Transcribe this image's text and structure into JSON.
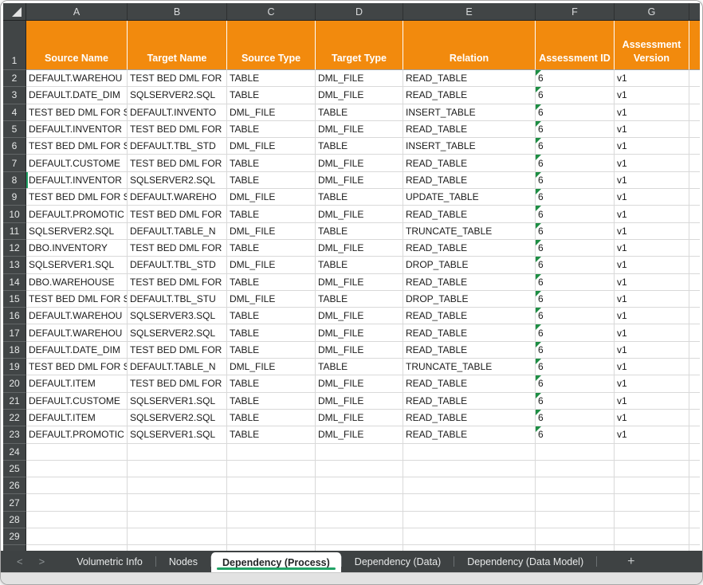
{
  "columns": {
    "letters": [
      "A",
      "B",
      "C",
      "D",
      "E",
      "F",
      "G"
    ],
    "keys": [
      "source_name",
      "target_name",
      "source_type",
      "target_type",
      "relation",
      "assessment_id",
      "assessment_version"
    ]
  },
  "header_row": {
    "row_number": "1",
    "labels": {
      "source_name": "Source Name",
      "target_name": "Target Name",
      "source_type": "Source Type",
      "target_type": "Target Type",
      "relation": "Relation",
      "assessment_id": "Assessment ID",
      "assessment_version": "Assessment Version"
    }
  },
  "rows": [
    {
      "n": "2",
      "source_name": "DEFAULT.WAREHOU",
      "target_name": "TEST BED DML FOR",
      "source_type": "TABLE",
      "target_type": "DML_FILE",
      "relation": "READ_TABLE",
      "assessment_id": "6",
      "assessment_version": "v1"
    },
    {
      "n": "3",
      "source_name": "DEFAULT.DATE_DIM",
      "target_name": "SQLSERVER2.SQL",
      "source_type": "TABLE",
      "target_type": "DML_FILE",
      "relation": "READ_TABLE",
      "assessment_id": "6",
      "assessment_version": "v1"
    },
    {
      "n": "4",
      "source_name": "TEST BED DML FOR S",
      "target_name": "DEFAULT.INVENTO",
      "source_type": "DML_FILE",
      "target_type": "TABLE",
      "relation": "INSERT_TABLE",
      "assessment_id": "6",
      "assessment_version": "v1"
    },
    {
      "n": "5",
      "source_name": "DEFAULT.INVENTOR",
      "target_name": "TEST BED DML FOR",
      "source_type": "TABLE",
      "target_type": "DML_FILE",
      "relation": "READ_TABLE",
      "assessment_id": "6",
      "assessment_version": "v1"
    },
    {
      "n": "6",
      "source_name": "TEST BED DML FOR S",
      "target_name": "DEFAULT.TBL_STD",
      "source_type": "DML_FILE",
      "target_type": "TABLE",
      "relation": "INSERT_TABLE",
      "assessment_id": "6",
      "assessment_version": "v1"
    },
    {
      "n": "7",
      "source_name": "DEFAULT.CUSTOME",
      "target_name": "TEST BED DML FOR",
      "source_type": "TABLE",
      "target_type": "DML_FILE",
      "relation": "READ_TABLE",
      "assessment_id": "6",
      "assessment_version": "v1"
    },
    {
      "n": "8",
      "source_name": "DEFAULT.INVENTOR",
      "target_name": "SQLSERVER2.SQL",
      "source_type": "TABLE",
      "target_type": "DML_FILE",
      "relation": "READ_TABLE",
      "assessment_id": "6",
      "assessment_version": "v1"
    },
    {
      "n": "9",
      "source_name": "TEST BED DML FOR S",
      "target_name": "DEFAULT.WAREHO",
      "source_type": "DML_FILE",
      "target_type": "TABLE",
      "relation": "UPDATE_TABLE",
      "assessment_id": "6",
      "assessment_version": "v1"
    },
    {
      "n": "10",
      "source_name": "DEFAULT.PROMOTIC",
      "target_name": "TEST BED DML FOR",
      "source_type": "TABLE",
      "target_type": "DML_FILE",
      "relation": "READ_TABLE",
      "assessment_id": "6",
      "assessment_version": "v1"
    },
    {
      "n": "11",
      "source_name": "SQLSERVER2.SQL",
      "target_name": "DEFAULT.TABLE_N",
      "source_type": "DML_FILE",
      "target_type": "TABLE",
      "relation": "TRUNCATE_TABLE",
      "assessment_id": "6",
      "assessment_version": "v1"
    },
    {
      "n": "12",
      "source_name": "DBO.INVENTORY",
      "target_name": "TEST BED DML FOR",
      "source_type": "TABLE",
      "target_type": "DML_FILE",
      "relation": "READ_TABLE",
      "assessment_id": "6",
      "assessment_version": "v1"
    },
    {
      "n": "13",
      "source_name": "SQLSERVER1.SQL",
      "target_name": "DEFAULT.TBL_STD",
      "source_type": "DML_FILE",
      "target_type": "TABLE",
      "relation": "DROP_TABLE",
      "assessment_id": "6",
      "assessment_version": "v1"
    },
    {
      "n": "14",
      "source_name": "DBO.WAREHOUSE",
      "target_name": "TEST BED DML FOR",
      "source_type": "TABLE",
      "target_type": "DML_FILE",
      "relation": "READ_TABLE",
      "assessment_id": "6",
      "assessment_version": "v1"
    },
    {
      "n": "15",
      "source_name": "TEST BED DML FOR S",
      "target_name": "DEFAULT.TBL_STU",
      "source_type": "DML_FILE",
      "target_type": "TABLE",
      "relation": "DROP_TABLE",
      "assessment_id": "6",
      "assessment_version": "v1"
    },
    {
      "n": "16",
      "source_name": "DEFAULT.WAREHOU",
      "target_name": "SQLSERVER3.SQL",
      "source_type": "TABLE",
      "target_type": "DML_FILE",
      "relation": "READ_TABLE",
      "assessment_id": "6",
      "assessment_version": "v1"
    },
    {
      "n": "17",
      "source_name": "DEFAULT.WAREHOU",
      "target_name": "SQLSERVER2.SQL",
      "source_type": "TABLE",
      "target_type": "DML_FILE",
      "relation": "READ_TABLE",
      "assessment_id": "6",
      "assessment_version": "v1"
    },
    {
      "n": "18",
      "source_name": "DEFAULT.DATE_DIM",
      "target_name": "TEST BED DML FOR",
      "source_type": "TABLE",
      "target_type": "DML_FILE",
      "relation": "READ_TABLE",
      "assessment_id": "6",
      "assessment_version": "v1"
    },
    {
      "n": "19",
      "source_name": "TEST BED DML FOR S",
      "target_name": "DEFAULT.TABLE_N",
      "source_type": "DML_FILE",
      "target_type": "TABLE",
      "relation": "TRUNCATE_TABLE",
      "assessment_id": "6",
      "assessment_version": "v1"
    },
    {
      "n": "20",
      "source_name": "DEFAULT.ITEM",
      "target_name": "TEST BED DML FOR",
      "source_type": "TABLE",
      "target_type": "DML_FILE",
      "relation": "READ_TABLE",
      "assessment_id": "6",
      "assessment_version": "v1"
    },
    {
      "n": "21",
      "source_name": "DEFAULT.CUSTOME",
      "target_name": "SQLSERVER1.SQL",
      "source_type": "TABLE",
      "target_type": "DML_FILE",
      "relation": "READ_TABLE",
      "assessment_id": "6",
      "assessment_version": "v1"
    },
    {
      "n": "22",
      "source_name": "DEFAULT.ITEM",
      "target_name": "SQLSERVER2.SQL",
      "source_type": "TABLE",
      "target_type": "DML_FILE",
      "relation": "READ_TABLE",
      "assessment_id": "6",
      "assessment_version": "v1"
    },
    {
      "n": "23",
      "source_name": "DEFAULT.PROMOTIC",
      "target_name": "SQLSERVER1.SQL",
      "source_type": "TABLE",
      "target_type": "DML_FILE",
      "relation": "READ_TABLE",
      "assessment_id": "6",
      "assessment_version": "v1"
    }
  ],
  "empty_row_numbers": [
    "24",
    "25",
    "26",
    "27",
    "28",
    "29"
  ],
  "active_cell": {
    "row": "8",
    "column": "source_name"
  },
  "sheet_tabs": {
    "nav_left": "<",
    "nav_right": ">",
    "tabs": [
      {
        "label": "Volumetric Info",
        "active": false
      },
      {
        "label": "Nodes",
        "active": false
      },
      {
        "label": "Dependency (Process)",
        "active": true
      },
      {
        "label": "Dependency (Data)",
        "active": false
      },
      {
        "label": "Dependency (Data Model)",
        "active": false
      }
    ],
    "add_label": "+"
  },
  "colors": {
    "header_fill": "#F28A0D",
    "active_tab_underline": "#21A366",
    "error_indicator_green": "#1E8E44"
  }
}
